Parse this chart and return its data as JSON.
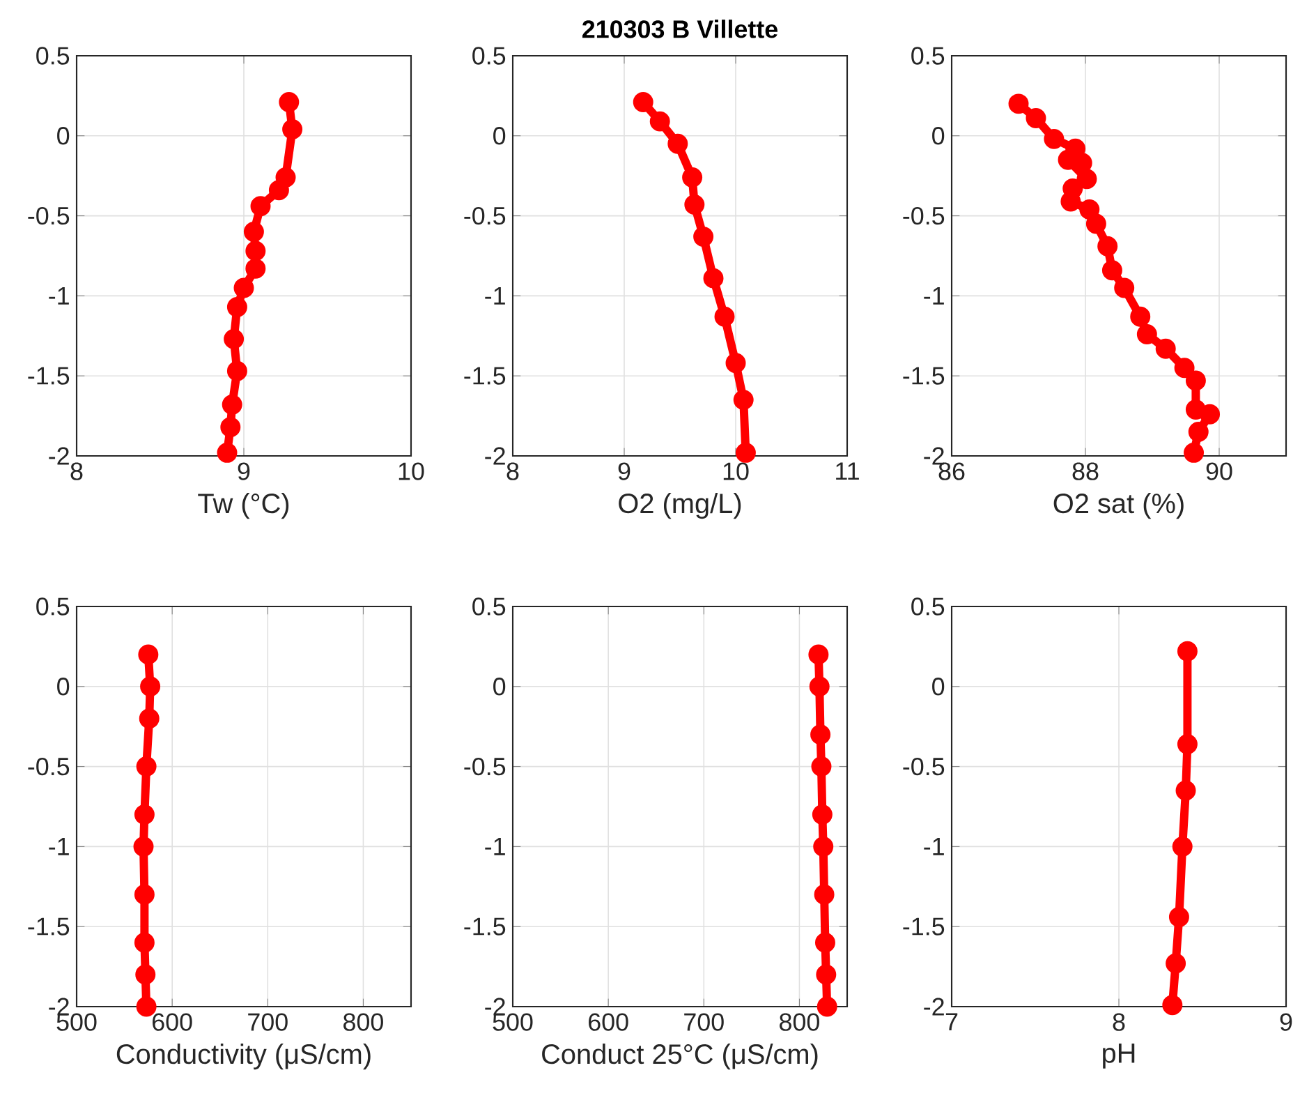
{
  "chart_data": [
    {
      "type": "line",
      "xlabel": "Tw (°C)",
      "xlim": [
        8,
        10
      ],
      "xticks": [
        8,
        9,
        10
      ],
      "ylim": [
        -2,
        0.5
      ],
      "yticks": [
        -2,
        -1.5,
        -1,
        -0.5,
        0,
        0.5
      ],
      "grid": true,
      "marker": "circle",
      "line_style": "solid",
      "series": [
        {
          "color": "#ff0000",
          "x": [
            9.27,
            9.29,
            9.25,
            9.21,
            9.1,
            9.06,
            9.07,
            9.07,
            9.0,
            8.96,
            8.94,
            8.96,
            8.93,
            8.92,
            8.9
          ],
          "values": [
            0.21,
            0.04,
            -0.26,
            -0.34,
            -0.44,
            -0.6,
            -0.72,
            -0.83,
            -0.95,
            -1.07,
            -1.27,
            -1.47,
            -1.68,
            -1.82,
            -1.98
          ]
        }
      ]
    },
    {
      "type": "line",
      "title": "210303 B Villette",
      "xlabel": "O2 (mg/L)",
      "xlim": [
        8,
        11
      ],
      "xticks": [
        8,
        9,
        10,
        11
      ],
      "ylim": [
        -2,
        0.5
      ],
      "yticks": [
        -2,
        -1.5,
        -1,
        -0.5,
        0,
        0.5
      ],
      "grid": true,
      "marker": "circle",
      "line_style": "solid",
      "series": [
        {
          "color": "#ff0000",
          "x": [
            9.17,
            9.32,
            9.48,
            9.61,
            9.63,
            9.71,
            9.8,
            9.9,
            10.0,
            10.07,
            10.09
          ],
          "values": [
            0.21,
            0.09,
            -0.05,
            -0.26,
            -0.43,
            -0.63,
            -0.89,
            -1.13,
            -1.42,
            -1.65,
            -1.98
          ]
        }
      ]
    },
    {
      "type": "line",
      "xlabel": "O2 sat (%)",
      "xlim": [
        86,
        91
      ],
      "xticks": [
        86,
        88,
        90
      ],
      "ylim": [
        -2,
        0.5
      ],
      "yticks": [
        -2,
        -1.5,
        -1,
        -0.5,
        0,
        0.5
      ],
      "grid": true,
      "marker": "circle",
      "line_style": "solid",
      "series": [
        {
          "color": "#ff0000",
          "x": [
            87.0,
            87.26,
            87.53,
            87.85,
            87.95,
            87.74,
            88.02,
            87.81,
            87.78,
            88.06,
            88.16,
            88.33,
            88.4,
            88.58,
            88.82,
            88.92,
            89.2,
            89.48,
            89.65,
            89.65,
            89.86,
            89.69,
            89.62
          ],
          "values": [
            0.2,
            0.11,
            -0.02,
            -0.08,
            -0.17,
            -0.15,
            -0.27,
            -0.33,
            -0.41,
            -0.46,
            -0.55,
            -0.69,
            -0.84,
            -0.95,
            -1.13,
            -1.24,
            -1.33,
            -1.45,
            -1.53,
            -1.71,
            -1.74,
            -1.85,
            -1.98
          ]
        }
      ]
    },
    {
      "type": "line",
      "xlabel": "Conductivity (μS/cm)",
      "xlim": [
        500,
        850
      ],
      "xticks": [
        500,
        600,
        700,
        800
      ],
      "ylim": [
        -2,
        0.5
      ],
      "yticks": [
        -2,
        -1.5,
        -1,
        -0.5,
        0,
        0.5
      ],
      "grid": true,
      "marker": "circle",
      "line_style": "solid",
      "series": [
        {
          "color": "#ff0000",
          "x": [
            575,
            577,
            576,
            573,
            571,
            570,
            571,
            571,
            572,
            573
          ],
          "values": [
            0.2,
            0,
            -0.2,
            -0.5,
            -0.8,
            -1.0,
            -1.3,
            -1.6,
            -1.8,
            -2.0
          ]
        }
      ]
    },
    {
      "type": "line",
      "xlabel": "Conduct 25°C (μS/cm)",
      "xlim": [
        500,
        850
      ],
      "xticks": [
        500,
        600,
        700,
        800
      ],
      "ylim": [
        -2,
        0.5
      ],
      "yticks": [
        -2,
        -1.5,
        -1,
        -0.5,
        0,
        0.5
      ],
      "grid": true,
      "marker": "circle",
      "line_style": "solid",
      "series": [
        {
          "color": "#ff0000",
          "x": [
            820,
            821,
            822,
            823,
            824,
            825,
            826,
            827,
            828,
            829
          ],
          "values": [
            0.2,
            0,
            -0.3,
            -0.5,
            -0.8,
            -1.0,
            -1.3,
            -1.6,
            -1.8,
            -2.0
          ]
        }
      ]
    },
    {
      "type": "line",
      "xlabel": "pH",
      "xlim": [
        7,
        9
      ],
      "xticks": [
        7,
        8,
        9
      ],
      "ylim": [
        -2,
        0.5
      ],
      "yticks": [
        -2,
        -1.5,
        -1,
        -0.5,
        0,
        0.5
      ],
      "grid": true,
      "marker": "circle",
      "line_style": "solid",
      "series": [
        {
          "color": "#ff0000",
          "x": [
            8.41,
            8.41,
            8.4,
            8.38,
            8.36,
            8.34,
            8.32
          ],
          "values": [
            0.22,
            -0.36,
            -0.65,
            -1.0,
            -1.44,
            -1.73,
            -1.99
          ]
        }
      ]
    }
  ]
}
